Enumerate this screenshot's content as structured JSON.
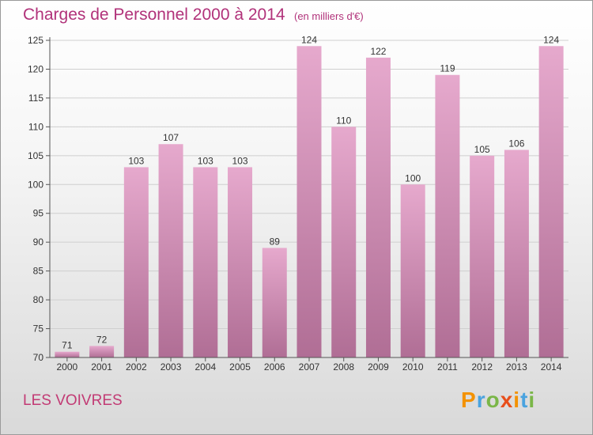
{
  "header": {
    "title": "Charges de Personnel 2000 à 2014",
    "unit_note": "(en milliers d'€)"
  },
  "footer": {
    "place_name": "LES VOIVRES",
    "logo_text": "Proxiti"
  },
  "colors": {
    "title": "#b1327a",
    "bar_top": "#e6a9cd",
    "bar_bottom": "#b06e95",
    "grid": "#cfcfcf"
  },
  "chart_data": {
    "type": "bar",
    "categories": [
      "2000",
      "2001",
      "2002",
      "2003",
      "2004",
      "2005",
      "2006",
      "2007",
      "2008",
      "2009",
      "2010",
      "2011",
      "2012",
      "2013",
      "2014"
    ],
    "values": [
      71,
      72,
      103,
      107,
      103,
      103,
      89,
      124,
      110,
      122,
      100,
      119,
      105,
      106,
      124
    ],
    "title": "Charges de Personnel 2000 à 2014",
    "subtitle": "(en milliers d'€)",
    "ylim": [
      70,
      125
    ],
    "yticks": [
      70,
      75,
      80,
      85,
      90,
      95,
      100,
      105,
      110,
      115,
      120,
      125
    ],
    "grid": true,
    "data_labels": true
  }
}
